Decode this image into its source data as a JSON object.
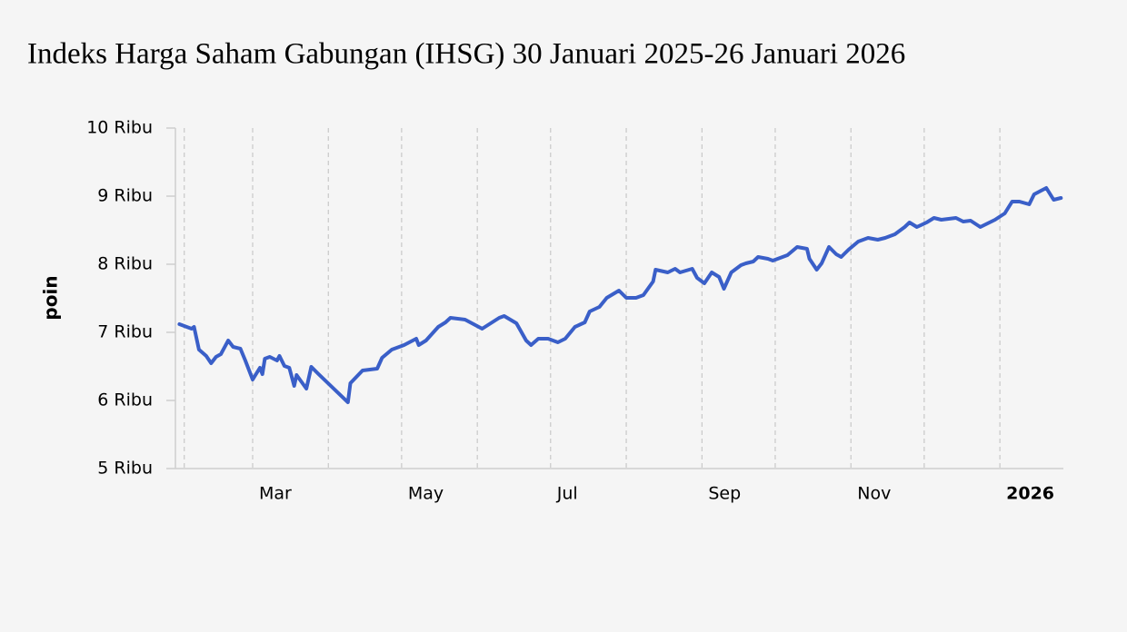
{
  "chart_data": {
    "type": "line",
    "title": "Indeks Harga Saham Gabungan (IHSG) 30 Januari 2025-26 Januari 2026",
    "y_label": "poin",
    "x": [
      "2025-01-30",
      "2025-02-04",
      "2025-02-05",
      "2025-02-07",
      "2025-02-10",
      "2025-02-12",
      "2025-02-14",
      "2025-02-16",
      "2025-02-19",
      "2025-02-21",
      "2025-02-24",
      "2025-02-26",
      "2025-03-01",
      "2025-03-04",
      "2025-03-05",
      "2025-03-06",
      "2025-03-08",
      "2025-03-11",
      "2025-03-12",
      "2025-03-14",
      "2025-03-16",
      "2025-03-18",
      "2025-03-19",
      "2025-03-23",
      "2025-03-25",
      "2025-03-28",
      "2025-04-09",
      "2025-04-10",
      "2025-04-15",
      "2025-04-21",
      "2025-04-23",
      "2025-04-27",
      "2025-05-02",
      "2025-05-07",
      "2025-05-08",
      "2025-05-11",
      "2025-05-16",
      "2025-05-19",
      "2025-05-21",
      "2025-05-27",
      "2025-06-03",
      "2025-06-10",
      "2025-06-12",
      "2025-06-17",
      "2025-06-21",
      "2025-06-23",
      "2025-06-26",
      "2025-06-30",
      "2025-07-04",
      "2025-07-07",
      "2025-07-11",
      "2025-07-15",
      "2025-07-17",
      "2025-07-21",
      "2025-07-24",
      "2025-07-29",
      "2025-08-01",
      "2025-08-05",
      "2025-08-08",
      "2025-08-12",
      "2025-08-13",
      "2025-08-18",
      "2025-08-21",
      "2025-08-23",
      "2025-08-28",
      "2025-08-30",
      "2025-09-02",
      "2025-09-05",
      "2025-09-08",
      "2025-09-10",
      "2025-09-13",
      "2025-09-17",
      "2025-09-19",
      "2025-09-22",
      "2025-09-24",
      "2025-09-28",
      "2025-09-30",
      "2025-10-06",
      "2025-10-10",
      "2025-10-14",
      "2025-10-15",
      "2025-10-18",
      "2025-10-20",
      "2025-10-23",
      "2025-10-26",
      "2025-10-28",
      "2025-10-31",
      "2025-11-04",
      "2025-11-08",
      "2025-11-12",
      "2025-11-15",
      "2025-11-19",
      "2025-11-23",
      "2025-11-25",
      "2025-11-28",
      "2025-12-02",
      "2025-12-05",
      "2025-12-08",
      "2025-12-14",
      "2025-12-17",
      "2025-12-20",
      "2025-12-24",
      "2025-12-30",
      "2026-01-03",
      "2026-01-06",
      "2026-01-09",
      "2026-01-13",
      "2026-01-15",
      "2026-01-20",
      "2026-01-23",
      "2026-01-26"
    ],
    "series": [
      {
        "name": "IHSG",
        "color": "#3a5fc8",
        "values": [
          7120,
          7053,
          7080,
          6747,
          6653,
          6547,
          6640,
          6680,
          6880,
          6787,
          6760,
          6587,
          6307,
          6480,
          6387,
          6613,
          6640,
          6587,
          6653,
          6507,
          6480,
          6213,
          6373,
          6173,
          6493,
          6387,
          5973,
          6253,
          6440,
          6467,
          6627,
          6747,
          6813,
          6907,
          6813,
          6880,
          7080,
          7147,
          7213,
          7187,
          7053,
          7213,
          7240,
          7133,
          6880,
          6813,
          6907,
          6907,
          6853,
          6907,
          7080,
          7147,
          7307,
          7373,
          7507,
          7613,
          7507,
          7507,
          7547,
          7747,
          7920,
          7880,
          7933,
          7880,
          7933,
          7800,
          7720,
          7880,
          7813,
          7640,
          7880,
          7987,
          8013,
          8040,
          8107,
          8080,
          8053,
          8133,
          8253,
          8227,
          8080,
          7920,
          8013,
          8253,
          8147,
          8107,
          8213,
          8333,
          8387,
          8360,
          8387,
          8440,
          8547,
          8613,
          8547,
          8613,
          8680,
          8653,
          8680,
          8627,
          8640,
          8547,
          8653,
          8747,
          8920,
          8920,
          8880,
          9027,
          9120,
          8947,
          8973
        ]
      }
    ],
    "xlim": [
      "2025-01-28",
      "2026-01-27"
    ],
    "xticks": [
      {
        "value": "2025-03-01",
        "label": "Mar"
      },
      {
        "value": "2025-05-01",
        "label": "May"
      },
      {
        "value": "2025-07-01",
        "label": "Jul"
      },
      {
        "value": "2025-09-01",
        "label": "Sep"
      },
      {
        "value": "2025-11-01",
        "label": "Nov"
      },
      {
        "value": "2026-01-01",
        "label": "2026",
        "bold": true
      }
    ],
    "xminor": [
      "2025-02-01",
      "2025-04-01",
      "2025-06-01",
      "2025-08-01",
      "2025-10-01",
      "2025-12-01"
    ],
    "ylim": [
      5000,
      10000
    ],
    "yticks": [
      {
        "value": 5000,
        "label": "5 Ribu"
      },
      {
        "value": 6000,
        "label": "6 Ribu"
      },
      {
        "value": 7000,
        "label": "7 Ribu"
      },
      {
        "value": 8000,
        "label": "8 Ribu"
      },
      {
        "value": 9000,
        "label": "9 Ribu"
      },
      {
        "value": 10000,
        "label": "10 Ribu"
      }
    ],
    "grid": true
  }
}
